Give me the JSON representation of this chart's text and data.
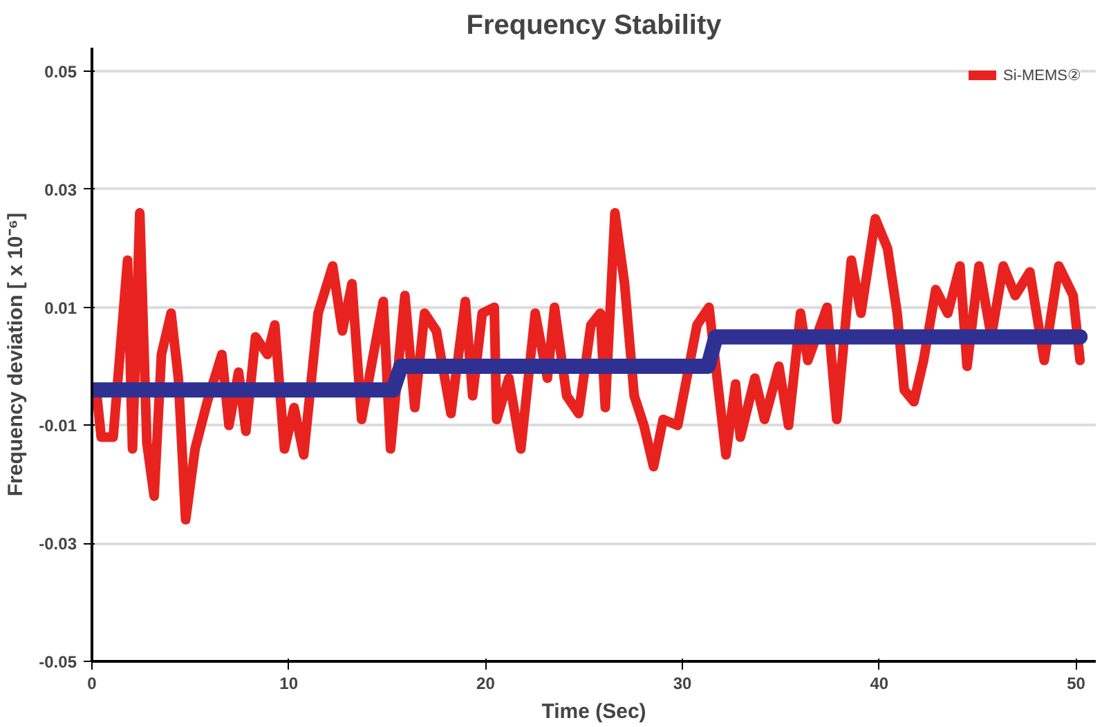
{
  "chart_data": {
    "type": "line",
    "title": "Frequency Stability",
    "xlabel": "Time (Sec)",
    "ylabel": "Frequency deviation [ x 10⁻⁶]",
    "xlim": [
      0,
      51
    ],
    "ylim": [
      -0.05,
      0.054
    ],
    "xticks": [
      0,
      10,
      20,
      30,
      40,
      50
    ],
    "yticks": [
      -0.05,
      -0.03,
      -0.01,
      0.01,
      0.03,
      0.05
    ],
    "grid": "y",
    "legend": "top right",
    "line_style": "solid",
    "series": [
      {
        "name": "Si-MEMS②",
        "color": "#e8231f",
        "x": [
          0.22,
          0.47,
          1.08,
          1.81,
          2.06,
          2.43,
          2.79,
          3.16,
          3.53,
          4.02,
          4.39,
          4.76,
          5.24,
          5.86,
          6.6,
          6.96,
          7.45,
          7.82,
          8.31,
          8.92,
          9.29,
          9.78,
          10.27,
          10.76,
          11.49,
          12.23,
          12.72,
          13.21,
          13.7,
          14.19,
          14.8,
          15.17,
          15.9,
          16.4,
          16.9,
          17.5,
          18.24,
          18.97,
          19.34,
          19.83,
          20.44,
          20.56,
          21.18,
          21.79,
          22.52,
          23.14,
          23.5,
          24.12,
          24.73,
          25.35,
          25.83,
          26.08,
          26.57,
          27.06,
          27.55,
          28.04,
          28.53,
          29.02,
          29.76,
          30.74,
          31.35,
          32.21,
          32.7,
          32.94,
          33.68,
          34.17,
          34.9,
          35.39,
          36.0,
          36.37,
          37.35,
          37.84,
          38.58,
          39.07,
          39.8,
          40.42,
          40.91,
          41.27,
          41.76,
          42.25,
          42.87,
          43.48,
          44.1,
          44.46,
          45.07,
          45.69,
          46.3,
          46.91,
          47.65,
          48.38,
          49.12,
          49.85,
          50.2
        ],
        "values": [
          -0.004,
          -0.012,
          -0.012,
          0.018,
          -0.014,
          0.026,
          -0.013,
          -0.022,
          0.002,
          0.009,
          -0.002,
          -0.026,
          -0.014,
          -0.006,
          0.002,
          -0.01,
          -0.001,
          -0.011,
          0.005,
          0.002,
          0.007,
          -0.014,
          -0.007,
          -0.015,
          0.009,
          0.017,
          0.006,
          0.014,
          -0.009,
          0.0,
          0.011,
          -0.014,
          0.012,
          -0.007,
          0.009,
          0.006,
          -0.008,
          0.011,
          -0.005,
          0.009,
          0.01,
          -0.009,
          -0.002,
          -0.014,
          0.009,
          -0.002,
          0.01,
          -0.005,
          -0.008,
          0.007,
          0.009,
          -0.007,
          0.026,
          0.014,
          -0.005,
          -0.01,
          -0.017,
          -0.009,
          -0.01,
          0.007,
          0.01,
          -0.015,
          -0.003,
          -0.012,
          -0.002,
          -0.009,
          0.0,
          -0.01,
          0.009,
          0.001,
          0.01,
          -0.009,
          0.018,
          0.009,
          0.025,
          0.02,
          0.009,
          -0.004,
          -0.006,
          0.001,
          0.013,
          0.009,
          0.017,
          0.0,
          0.017,
          0.005,
          0.017,
          0.012,
          0.016,
          0.001,
          0.017,
          0.012,
          0.001
        ]
      },
      {
        "color": "#2e3192",
        "x": [
          0,
          15.3,
          15.7,
          31.3,
          31.7,
          50.2
        ],
        "values": [
          -0.004,
          -0.004,
          0.0,
          0.0,
          0.005,
          0.005
        ]
      }
    ]
  }
}
